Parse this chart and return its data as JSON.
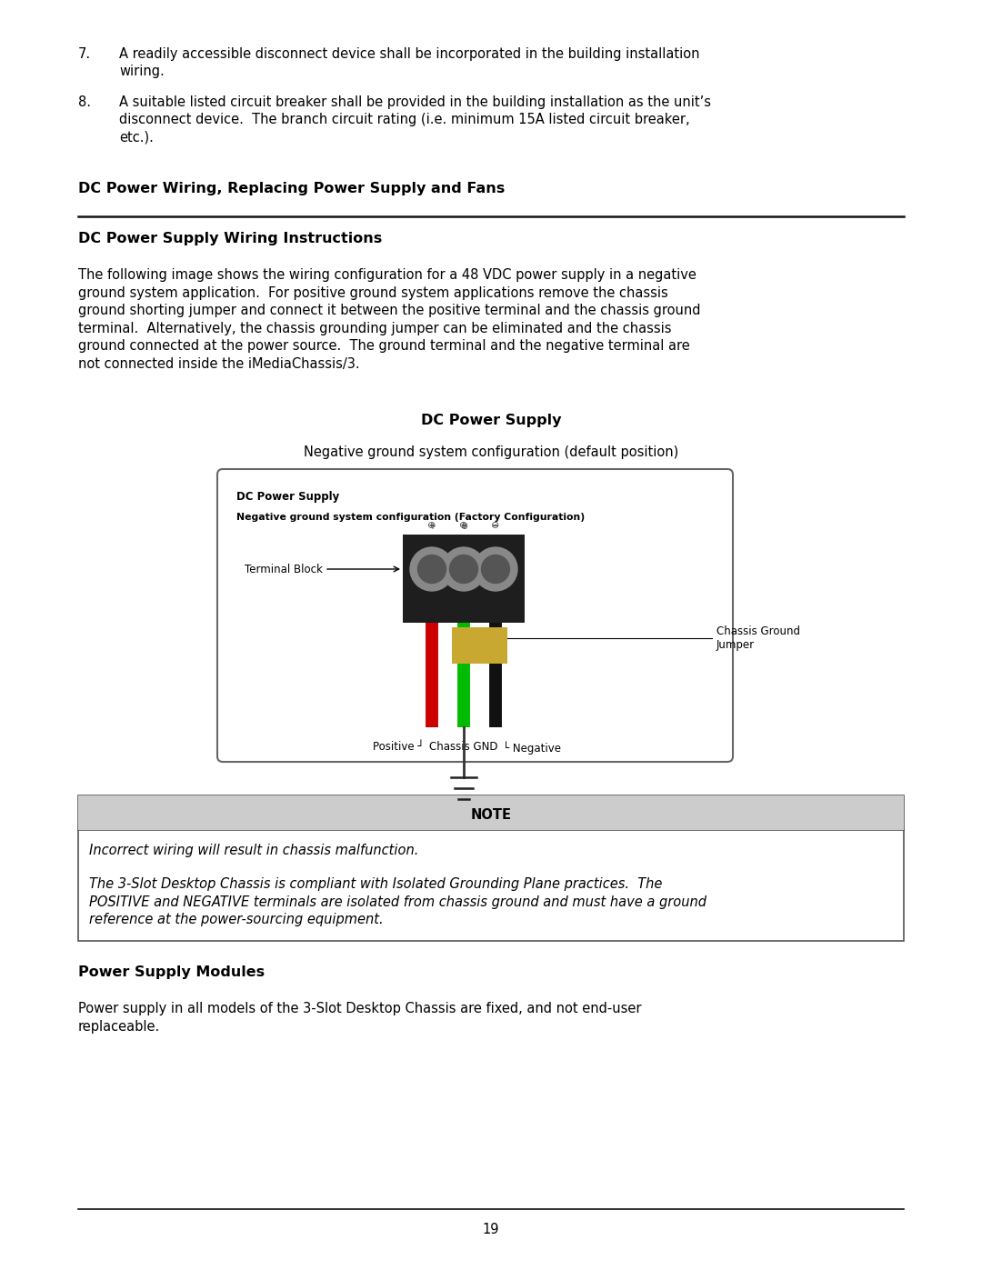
{
  "bg_color": "#ffffff",
  "text_color": "#000000",
  "page_number": "19",
  "section_header": "DC Power Wiring, Replacing Power Supply and Fans",
  "subsection1": "DC Power Supply Wiring Instructions",
  "item7": "A readily accessible disconnect device shall be incorporated in the building installation\nwiring.",
  "item8": "A suitable listed circuit breaker shall be provided in the building installation as the unit’s\ndisconnect device.  The branch circuit rating (i.e. minimum 15A listed circuit breaker,\netc.).",
  "diagram_title": "DC Power Supply",
  "diagram_subtitle": "Negative ground system configuration (default position)",
  "diagram_inner_title1": "DC Power Supply",
  "diagram_inner_title2": "Negative ground system configuration (Factory Configuration)",
  "terminal_block_label": "Terminal Block",
  "chassis_ground_label": "Chassis Ground\nJumper",
  "positive_label": "Positive",
  "negative_label": "Negative",
  "chassis_gnd_label": "Chassis GND",
  "note_header": "NOTE",
  "note_line1": "Incorrect wiring will result in chassis malfunction.",
  "note_line2": "The 3-Slot Desktop Chassis is compliant with Isolated Grounding Plane practices.  The\nPOSITIVE and NEGATIVE terminals are isolated from chassis ground and must have a ground\nreference at the power-sourcing equipment.",
  "subsection2": "Power Supply Modules",
  "para2": "Power supply in all models of the 3-Slot Desktop Chassis are fixed, and not end-user\nreplaceable.",
  "wire_red": "#cc0000",
  "wire_green": "#00bb00",
  "wire_black": "#111111",
  "jumper_color": "#c8a830",
  "terminal_dark": "#1a1a1a",
  "screw_outer": "#888888",
  "screw_inner": "#555555",
  "diagram_bg": "#ffffff",
  "diagram_border": "#666666",
  "note_header_bg": "#cccccc",
  "note_border": "#555555",
  "section_line_color": "#111111"
}
